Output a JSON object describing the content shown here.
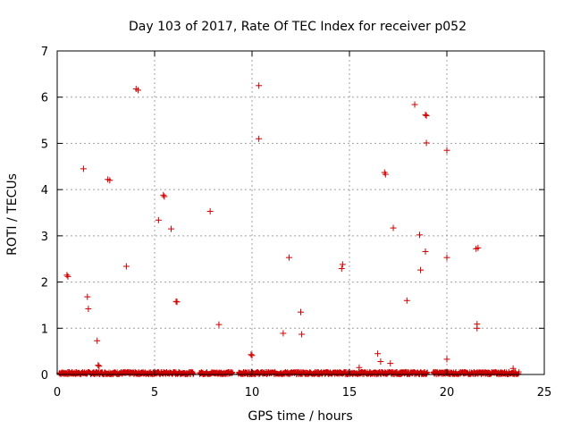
{
  "chart_data": {
    "type": "scatter",
    "title": "Day 103 of 2017, Rate Of TEC Index for receiver p052",
    "xlabel": "GPS time / hours",
    "ylabel": "ROTI / TECUs",
    "xlim": [
      0,
      25
    ],
    "ylim": [
      0,
      7
    ],
    "x_ticks": [
      "0",
      "5",
      "10",
      "15",
      "20",
      "25"
    ],
    "y_ticks": [
      "0",
      "1",
      "2",
      "3",
      "4",
      "5",
      "6",
      "7"
    ],
    "grid": true,
    "marker": "+",
    "color": "#cc0000",
    "baseline_band": {
      "description_range_hours": [
        [
          0.1,
          7.0
        ],
        [
          7.3,
          9.0
        ],
        [
          9.3,
          19.0
        ],
        [
          19.3,
          23.7
        ]
      ],
      "value_range": [
        0.0,
        0.06
      ]
    },
    "series": [
      {
        "points": [
          [
            0.5,
            2.15
          ],
          [
            0.55,
            2.12
          ],
          [
            1.35,
            4.45
          ],
          [
            1.55,
            1.68
          ],
          [
            1.6,
            1.42
          ],
          [
            2.05,
            0.73
          ],
          [
            2.1,
            0.2
          ],
          [
            2.15,
            0.18
          ],
          [
            2.6,
            4.22
          ],
          [
            2.7,
            4.2
          ],
          [
            3.55,
            2.34
          ],
          [
            4.05,
            6.18
          ],
          [
            4.15,
            6.15
          ],
          [
            5.2,
            3.34
          ],
          [
            5.45,
            3.88
          ],
          [
            5.5,
            3.85
          ],
          [
            5.85,
            3.15
          ],
          [
            6.1,
            1.58
          ],
          [
            6.15,
            1.57
          ],
          [
            7.85,
            3.53
          ],
          [
            8.3,
            1.08
          ],
          [
            9.95,
            0.43
          ],
          [
            10.0,
            0.41
          ],
          [
            10.35,
            6.25
          ],
          [
            10.35,
            5.1
          ],
          [
            11.6,
            0.89
          ],
          [
            11.9,
            2.53
          ],
          [
            12.5,
            1.35
          ],
          [
            12.55,
            0.87
          ],
          [
            14.65,
            2.38
          ],
          [
            14.6,
            2.29
          ],
          [
            15.5,
            0.15
          ],
          [
            16.45,
            0.45
          ],
          [
            16.6,
            0.28
          ],
          [
            16.8,
            4.37
          ],
          [
            16.85,
            4.33
          ],
          [
            17.1,
            0.24
          ],
          [
            17.25,
            3.17
          ],
          [
            17.95,
            1.6
          ],
          [
            18.35,
            5.84
          ],
          [
            18.6,
            3.02
          ],
          [
            18.65,
            2.26
          ],
          [
            18.9,
            5.62
          ],
          [
            18.95,
            5.6
          ],
          [
            18.95,
            5.01
          ],
          [
            18.9,
            2.66
          ],
          [
            20.0,
            4.85
          ],
          [
            20.0,
            2.53
          ],
          [
            20.0,
            0.33
          ],
          [
            21.5,
            2.72
          ],
          [
            21.6,
            2.74
          ],
          [
            21.55,
            1.09
          ],
          [
            21.55,
            1.0
          ],
          [
            23.4,
            0.13
          ]
        ]
      }
    ]
  }
}
